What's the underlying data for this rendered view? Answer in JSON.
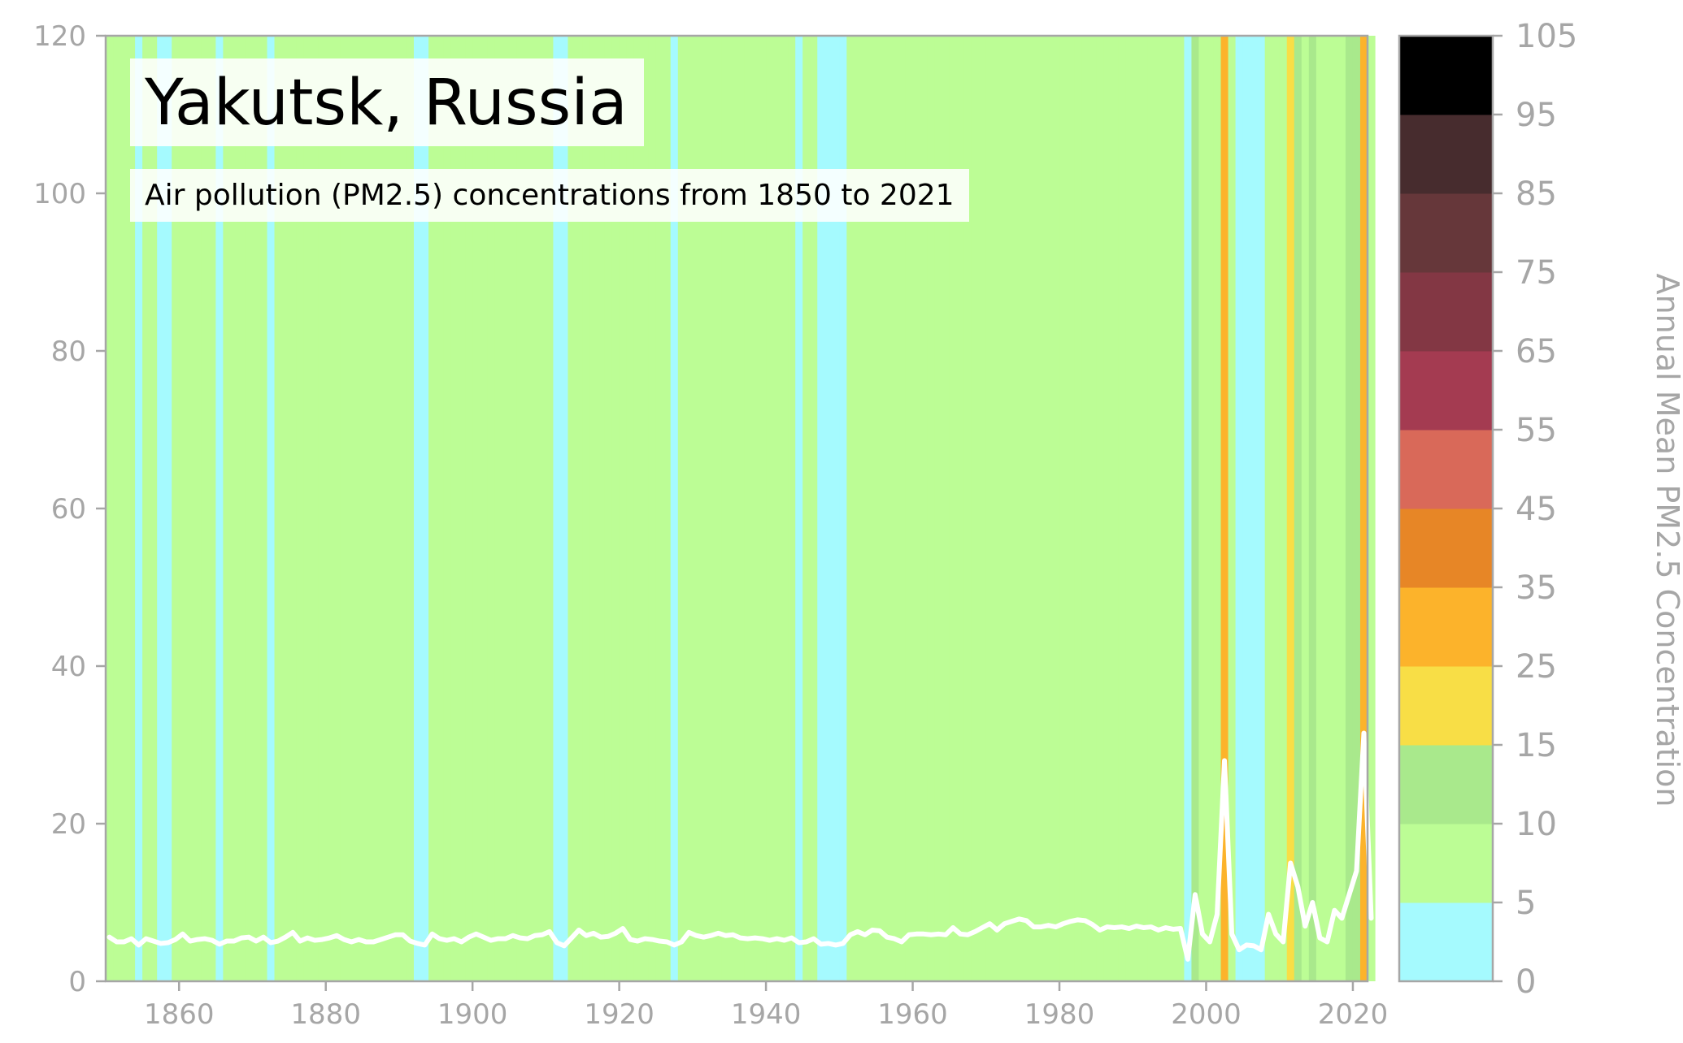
{
  "chart_data": {
    "type": "line",
    "title": "Yakutsk, Russia",
    "subtitle": "Air pollution (PM2.5) concentrations from 1850 to 2021",
    "x_ticks": [
      1860,
      1880,
      1900,
      1920,
      1940,
      1960,
      1980,
      2000,
      2020
    ],
    "y_ticks": [
      0,
      20,
      40,
      60,
      80,
      100,
      120
    ],
    "xlim": [
      1850,
      2022
    ],
    "ylim": [
      0,
      120
    ],
    "grid": false,
    "line_color": "#ffffff",
    "background": "annual stripes coloured by PM2.5 concentration band",
    "colorbar": {
      "label": "Annual Mean PM2.5 Concentration",
      "ticks": [
        0,
        5,
        10,
        15,
        25,
        35,
        45,
        55,
        65,
        75,
        85,
        95,
        105
      ],
      "bins": [
        {
          "min": 0,
          "max": 5,
          "color": "#a5fafe"
        },
        {
          "min": 5,
          "max": 10,
          "color": "#bcfd95"
        },
        {
          "min": 10,
          "max": 15,
          "color": "#a9e98c"
        },
        {
          "min": 15,
          "max": 25,
          "color": "#f8de46"
        },
        {
          "min": 25,
          "max": 35,
          "color": "#fcb32b"
        },
        {
          "min": 35,
          "max": 45,
          "color": "#e78626"
        },
        {
          "min": 45,
          "max": 55,
          "color": "#d96959"
        },
        {
          "min": 55,
          "max": 65,
          "color": "#a43b51"
        },
        {
          "min": 65,
          "max": 75,
          "color": "#833744"
        },
        {
          "min": 75,
          "max": 85,
          "color": "#66373a"
        },
        {
          "min": 85,
          "max": 95,
          "color": "#472c2e"
        },
        {
          "min": 95,
          "max": 105,
          "color": "#000000"
        }
      ]
    },
    "series": [
      {
        "x_start": 1850,
        "values": [
          5.6,
          5.0,
          5.0,
          5.4,
          4.6,
          5.4,
          5.1,
          4.8,
          4.9,
          5.3,
          6.0,
          5.1,
          5.3,
          5.4,
          5.2,
          4.7,
          5.1,
          5.1,
          5.5,
          5.6,
          5.1,
          5.6,
          4.9,
          5.1,
          5.6,
          6.2,
          5.1,
          5.5,
          5.2,
          5.3,
          5.5,
          5.8,
          5.3,
          5.0,
          5.3,
          5.0,
          5.0,
          5.3,
          5.6,
          5.9,
          5.9,
          5.1,
          4.8,
          4.6,
          6.0,
          5.4,
          5.2,
          5.4,
          5.0,
          5.6,
          6.0,
          5.6,
          5.2,
          5.4,
          5.4,
          5.8,
          5.5,
          5.4,
          5.8,
          5.9,
          6.3,
          4.9,
          4.5,
          5.5,
          6.5,
          5.8,
          6.1,
          5.6,
          5.7,
          6.1,
          6.7,
          5.3,
          5.1,
          5.4,
          5.3,
          5.1,
          5.0,
          4.6,
          5.0,
          6.2,
          5.8,
          5.6,
          5.8,
          6.1,
          5.8,
          5.9,
          5.5,
          5.4,
          5.5,
          5.4,
          5.2,
          5.4,
          5.2,
          5.5,
          4.9,
          5.0,
          5.4,
          4.7,
          4.8,
          4.6,
          4.8,
          5.9,
          6.3,
          5.9,
          6.5,
          6.4,
          5.6,
          5.4,
          5.0,
          5.9,
          6.0,
          6.0,
          5.9,
          6.0,
          5.9,
          6.8,
          6.0,
          5.9,
          6.3,
          6.8,
          7.3,
          6.5,
          7.3,
          7.6,
          7.9,
          7.7,
          6.9,
          6.9,
          7.1,
          6.9,
          7.3,
          7.6,
          7.8,
          7.7,
          7.2,
          6.5,
          6.9,
          6.8,
          6.9,
          6.7,
          7.0,
          6.8,
          6.9,
          6.5,
          6.8,
          6.6,
          6.7,
          2.8,
          11.0,
          6.0,
          5.0,
          8.5,
          28.0,
          6.0,
          4.0,
          4.6,
          4.5,
          4.0,
          8.5,
          6.0,
          5.0,
          15.0,
          12.0,
          7.0,
          10.0,
          5.5,
          5.0,
          9.0,
          8.0,
          11.0,
          14.0,
          31.5,
          8.0
        ]
      }
    ]
  }
}
